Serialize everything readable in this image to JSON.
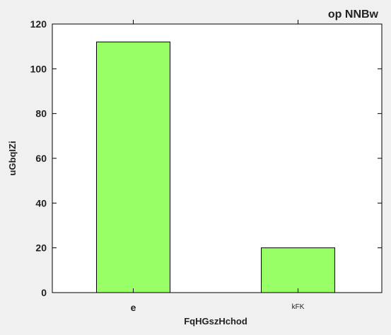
{
  "chart_data": {
    "type": "bar",
    "title": "op NNBw",
    "xlabel": "FqHGszHchod",
    "ylabel": "uGbqIZi",
    "categories": [
      "e",
      "kFK"
    ],
    "values": [
      112,
      20
    ],
    "ylim": [
      0,
      120
    ],
    "yticks": [
      "0",
      "20",
      "40",
      "60",
      "80",
      "100",
      "120"
    ],
    "bar_color": "#99ff66",
    "bar_edge_color": "#000000",
    "grid": false,
    "legend": "none"
  }
}
